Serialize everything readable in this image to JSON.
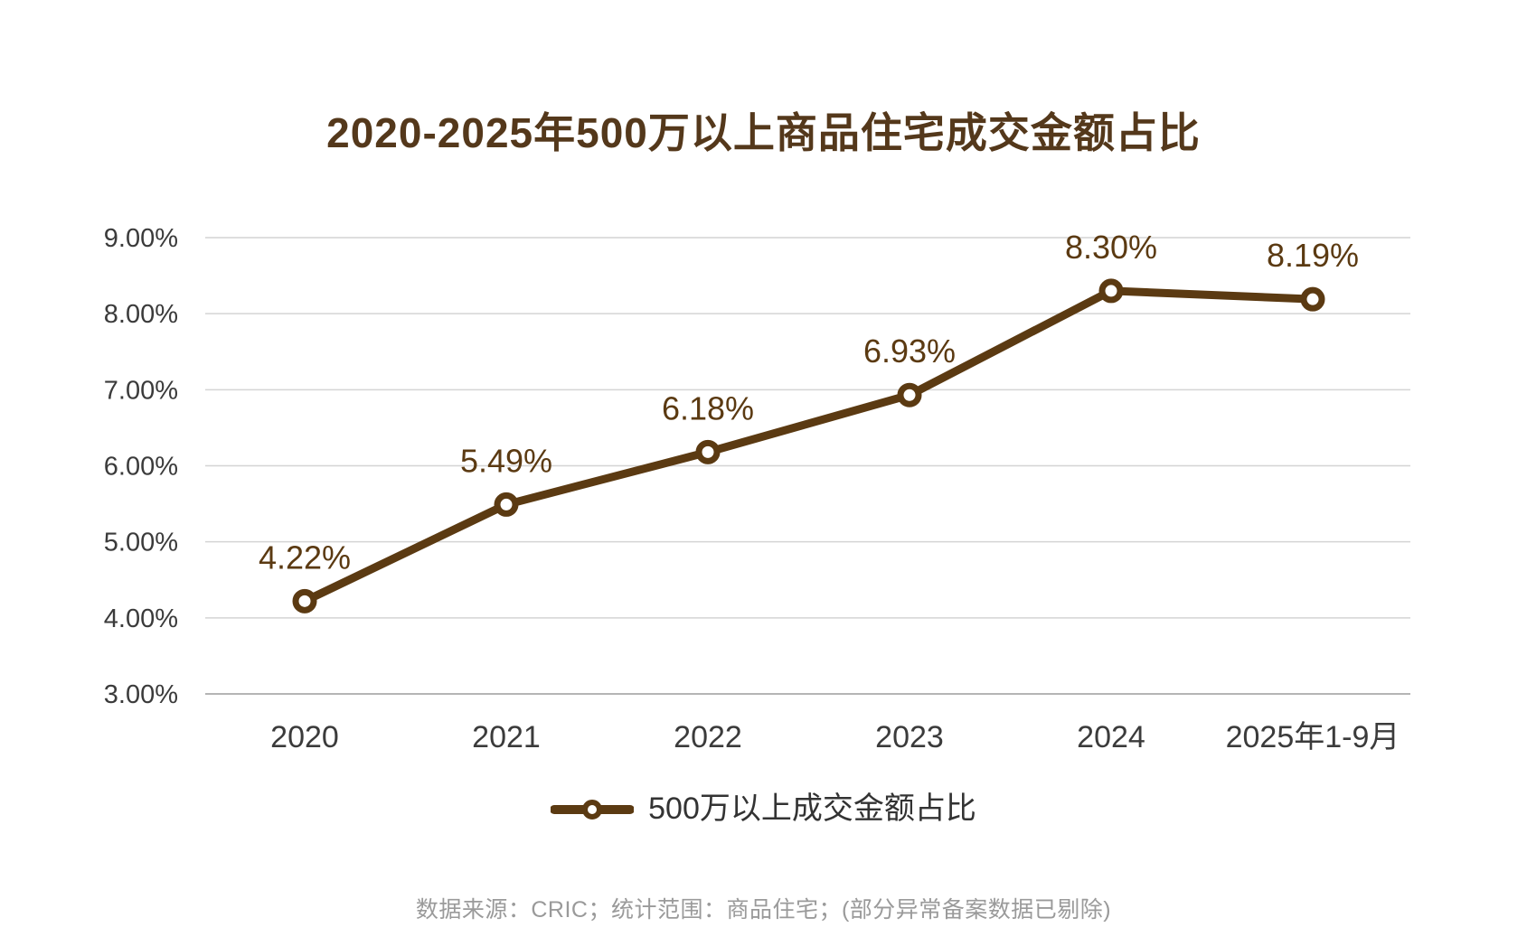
{
  "title": "2020-2025年500万以上商品住宅成交金额占比",
  "legend": {
    "label": "500万以上成交金额占比"
  },
  "source_note": "数据来源：CRIC；统计范围：商品住宅；(部分异常备案数据已剔除)",
  "colors": {
    "title": "#54381b",
    "line": "#5b3a12",
    "marker_fill": "#ffffff",
    "data_label": "#5b3a12",
    "grid": "#d4d4d4",
    "axis_baseline": "#b5b5b5",
    "axis_text": "#3b3b3b",
    "legend_text": "#333333",
    "note_text": "#9a9a9a",
    "background": "#ffffff"
  },
  "chart_data": {
    "type": "line",
    "title": "2020-2025年500万以上商品住宅成交金额占比",
    "categories": [
      "2020",
      "2021",
      "2022",
      "2023",
      "2024",
      "2025年1-9月"
    ],
    "series": [
      {
        "name": "500万以上成交金额占比",
        "values": [
          4.22,
          5.49,
          6.18,
          6.93,
          8.3,
          8.19
        ],
        "labels": [
          "4.22%",
          "5.49%",
          "6.18%",
          "6.93%",
          "8.30%",
          "8.19%"
        ]
      }
    ],
    "ylim": [
      3,
      9
    ],
    "ytick_step": 1,
    "ytick_labels": [
      "3.00%",
      "4.00%",
      "5.00%",
      "6.00%",
      "7.00%",
      "8.00%",
      "9.00%"
    ],
    "grid": "horizontal-only",
    "legend_position": "bottom",
    "xlabel": "",
    "ylabel": ""
  }
}
